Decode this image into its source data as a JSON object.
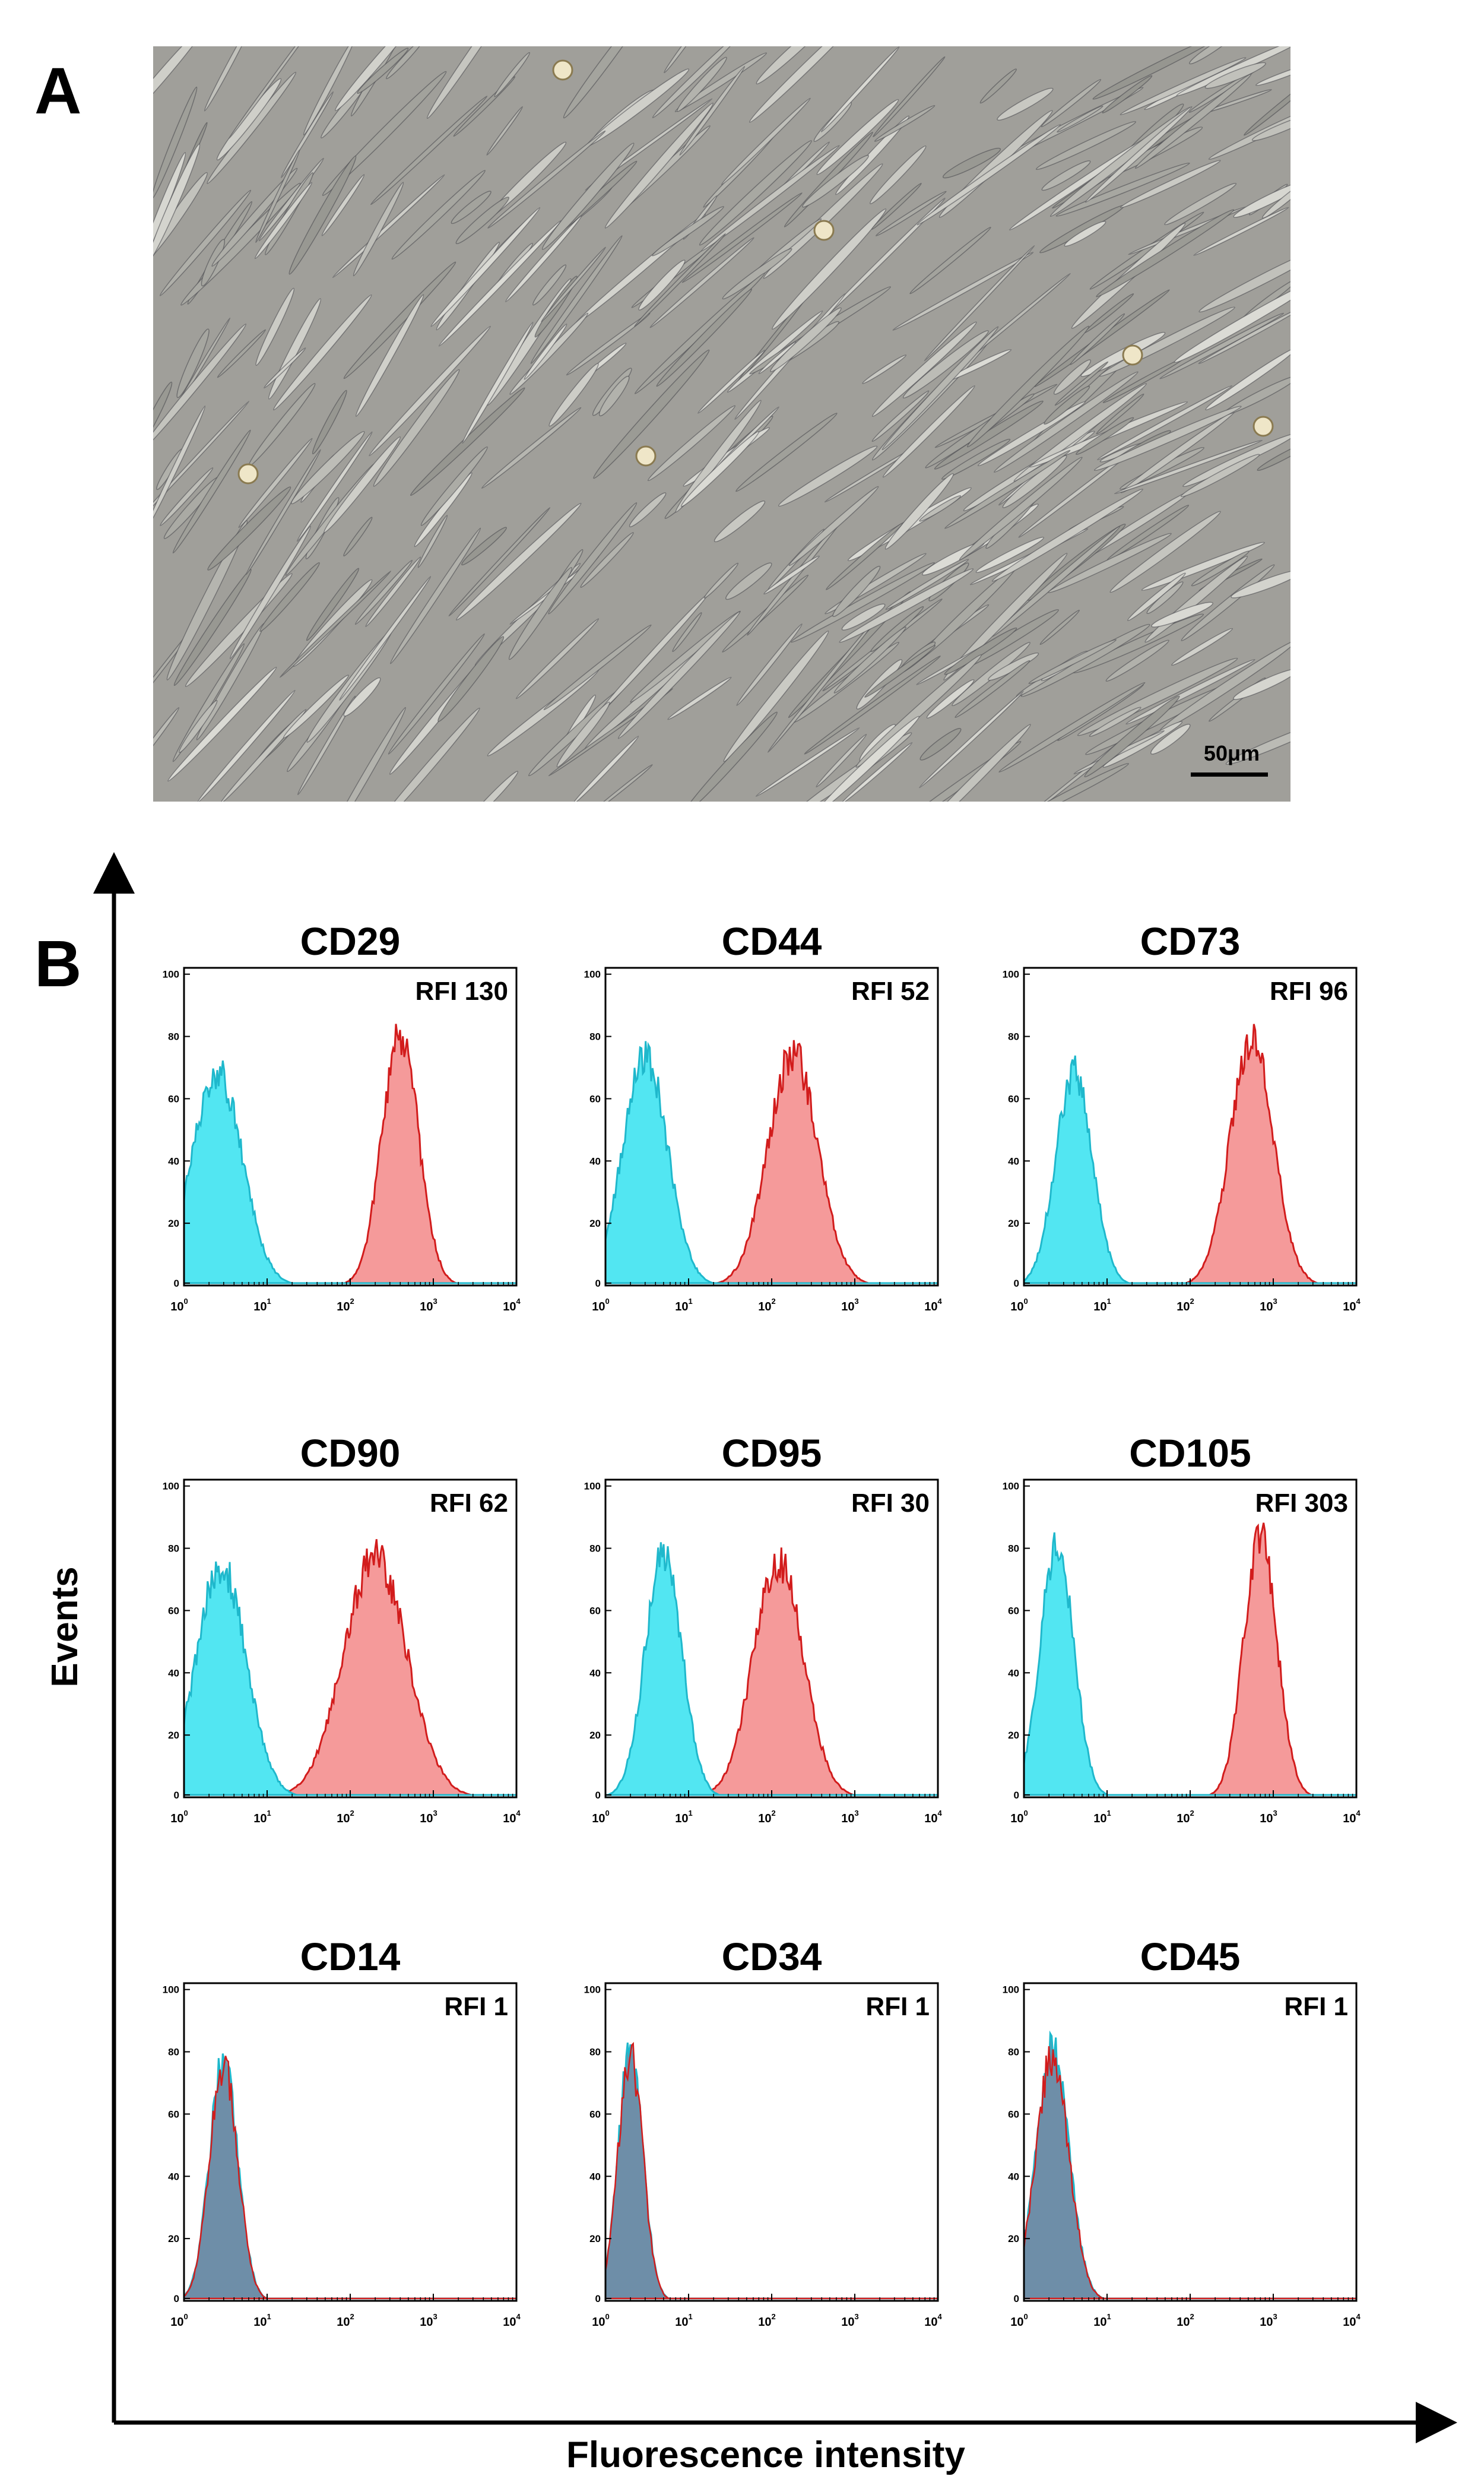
{
  "panel_a": {
    "label": "A",
    "scale_bar": "50μm"
  },
  "panel_b": {
    "label": "B",
    "y_axis_label": "Events",
    "x_axis_label": "Fluorescence intensity"
  },
  "colors": {
    "control": "#52e6f2",
    "control_stroke": "#1fb8cc",
    "stained": "#f59a9a",
    "stained_stroke": "#d21c1c",
    "overlap": "#6f8ea8"
  },
  "chart_data": [
    {
      "type": "area",
      "title": "CD29",
      "rfi": "RFI 130",
      "x_scale": "log",
      "xlim": [
        1,
        10000
      ],
      "ylim": [
        0,
        100
      ],
      "x_tick_labels": [
        "10^0",
        "10^1",
        "10^2",
        "10^3",
        "10^4"
      ],
      "y_tick_labels": [
        "0",
        "20",
        "40",
        "60",
        "80",
        "100"
      ],
      "series": [
        {
          "role": "isotype",
          "peak_x": 2.5,
          "peak_y": 70,
          "log_sd": 0.3
        },
        {
          "role": "marker",
          "peak_x": 400,
          "peak_y": 82,
          "log_sd": 0.22
        }
      ]
    },
    {
      "type": "area",
      "title": "CD44",
      "rfi": "RFI 52",
      "x_scale": "log",
      "xlim": [
        1,
        10000
      ],
      "ylim": [
        0,
        100
      ],
      "x_tick_labels": [
        "10^0",
        "10^1",
        "10^2",
        "10^3",
        "10^4"
      ],
      "y_tick_labels": [
        "0",
        "20",
        "40",
        "60",
        "80",
        "100"
      ],
      "series": [
        {
          "role": "isotype",
          "peak_x": 3,
          "peak_y": 75,
          "log_sd": 0.27
        },
        {
          "role": "marker",
          "peak_x": 180,
          "peak_y": 76,
          "log_sd": 0.3
        }
      ]
    },
    {
      "type": "area",
      "title": "CD73",
      "rfi": "RFI 96",
      "x_scale": "log",
      "xlim": [
        1,
        10000
      ],
      "ylim": [
        0,
        100
      ],
      "x_tick_labels": [
        "10^0",
        "10^1",
        "10^2",
        "10^3",
        "10^4"
      ],
      "y_tick_labels": [
        "0",
        "20",
        "40",
        "60",
        "80",
        "100"
      ],
      "series": [
        {
          "role": "isotype",
          "peak_x": 4,
          "peak_y": 70,
          "log_sd": 0.22
        },
        {
          "role": "marker",
          "peak_x": 550,
          "peak_y": 80,
          "log_sd": 0.26
        }
      ]
    },
    {
      "type": "area",
      "title": "CD90",
      "rfi": "RFI 62",
      "x_scale": "log",
      "xlim": [
        1,
        10000
      ],
      "ylim": [
        0,
        100
      ],
      "x_tick_labels": [
        "10^0",
        "10^1",
        "10^2",
        "10^3",
        "10^4"
      ],
      "y_tick_labels": [
        "0",
        "20",
        "40",
        "60",
        "80",
        "100"
      ],
      "series": [
        {
          "role": "isotype",
          "peak_x": 2.8,
          "peak_y": 76,
          "log_sd": 0.3
        },
        {
          "role": "marker",
          "peak_x": 200,
          "peak_y": 79,
          "log_sd": 0.38
        }
      ]
    },
    {
      "type": "area",
      "title": "CD95",
      "rfi": "RFI 30",
      "x_scale": "log",
      "xlim": [
        1,
        10000
      ],
      "ylim": [
        0,
        100
      ],
      "x_tick_labels": [
        "10^0",
        "10^1",
        "10^2",
        "10^3",
        "10^4"
      ],
      "y_tick_labels": [
        "0",
        "20",
        "40",
        "60",
        "80",
        "100"
      ],
      "series": [
        {
          "role": "isotype",
          "peak_x": 5,
          "peak_y": 80,
          "log_sd": 0.22
        },
        {
          "role": "marker",
          "peak_x": 120,
          "peak_y": 77,
          "log_sd": 0.3
        }
      ]
    },
    {
      "type": "area",
      "title": "CD105",
      "rfi": "RFI 303",
      "x_scale": "log",
      "xlim": [
        1,
        10000
      ],
      "ylim": [
        0,
        100
      ],
      "x_tick_labels": [
        "10^0",
        "10^1",
        "10^2",
        "10^3",
        "10^4"
      ],
      "y_tick_labels": [
        "0",
        "20",
        "40",
        "60",
        "80",
        "100"
      ],
      "series": [
        {
          "role": "isotype",
          "peak_x": 2.5,
          "peak_y": 83,
          "log_sd": 0.2
        },
        {
          "role": "marker",
          "peak_x": 700,
          "peak_y": 85,
          "log_sd": 0.2
        }
      ]
    },
    {
      "type": "area",
      "title": "CD14",
      "rfi": "RFI 1",
      "x_scale": "log",
      "xlim": [
        1,
        10000
      ],
      "ylim": [
        0,
        100
      ],
      "x_tick_labels": [
        "10^0",
        "10^1",
        "10^2",
        "10^3",
        "10^4"
      ],
      "y_tick_labels": [
        "0",
        "20",
        "40",
        "60",
        "80",
        "100"
      ],
      "series": [
        {
          "role": "isotype",
          "peak_x": 3,
          "peak_y": 79,
          "log_sd": 0.17
        },
        {
          "role": "marker",
          "peak_x": 3,
          "peak_y": 77,
          "log_sd": 0.17
        }
      ]
    },
    {
      "type": "area",
      "title": "CD34",
      "rfi": "RFI 1",
      "x_scale": "log",
      "xlim": [
        1,
        10000
      ],
      "ylim": [
        0,
        100
      ],
      "x_tick_labels": [
        "10^0",
        "10^1",
        "10^2",
        "10^3",
        "10^4"
      ],
      "y_tick_labels": [
        "0",
        "20",
        "40",
        "60",
        "80",
        "100"
      ],
      "series": [
        {
          "role": "isotype",
          "peak_x": 2,
          "peak_y": 82,
          "log_sd": 0.15
        },
        {
          "role": "marker",
          "peak_x": 2,
          "peak_y": 80,
          "log_sd": 0.15
        }
      ]
    },
    {
      "type": "area",
      "title": "CD45",
      "rfi": "RFI 1",
      "x_scale": "log",
      "xlim": [
        1,
        10000
      ],
      "ylim": [
        0,
        100
      ],
      "x_tick_labels": [
        "10^0",
        "10^1",
        "10^2",
        "10^3",
        "10^4"
      ],
      "y_tick_labels": [
        "0",
        "20",
        "40",
        "60",
        "80",
        "100"
      ],
      "series": [
        {
          "role": "isotype",
          "peak_x": 2.2,
          "peak_y": 82,
          "log_sd": 0.2
        },
        {
          "role": "marker",
          "peak_x": 2.2,
          "peak_y": 80,
          "log_sd": 0.2
        }
      ]
    }
  ]
}
